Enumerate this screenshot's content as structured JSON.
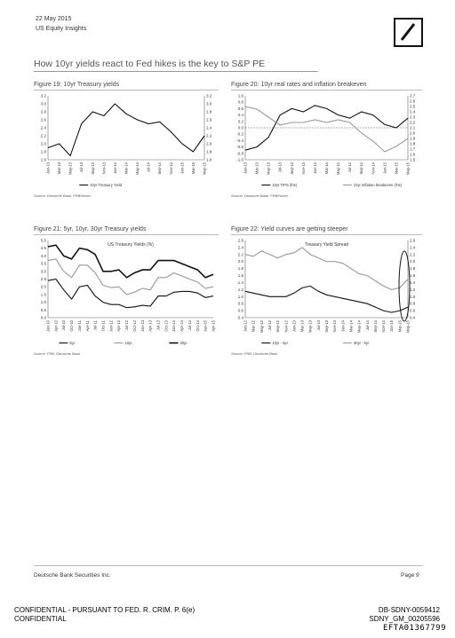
{
  "header": {
    "date": "22 May 2015",
    "subtitle": "US Equity Insights"
  },
  "page_title": "How 10yr yields react to Fed hikes is the key to S&P PE",
  "figures": [
    {
      "title": "Figure 19: 10yr Treasury yields",
      "source": "Source: Deutsche Bank, FRB/Haver"
    },
    {
      "title": "Figure 20: 10yr real rates and inflation breakeven",
      "source": "Source: Deutsche Bank, FRB/Haver"
    },
    {
      "title": "Figure 21: 5yr, 10yr, 30yr Treasury yields",
      "source": "Source: FRB, Deutsche Bank"
    },
    {
      "title": "Figure 22: Yield curves are getting steeper",
      "source": "Source: FRB, Deutsche Bank"
    }
  ],
  "footer": {
    "left": "Deutsche Bank Securities Inc.",
    "right": "Page 9",
    "confidential_1": "CONFIDENTIAL - PURSUANT TO FED. R. CRIM. P. 6(e)",
    "confidential_2": "CONFIDENTIAL",
    "bates_1": "DB-SDNY-0059412",
    "bates_2": "SDNY_GM_00205596",
    "efta": "EFTA01367799"
  },
  "chart_data": [
    {
      "type": "line",
      "inner_title": "",
      "ylim": [
        1.6,
        3.2
      ],
      "y_ticks_left": [
        "3.2",
        "3.0",
        "2.8",
        "2.6",
        "2.4",
        "2.2",
        "2.0",
        "1.8",
        "1.6"
      ],
      "y_ticks_right": [
        "3.2",
        "3.0",
        "2.8",
        "2.6",
        "2.4",
        "2.2",
        "2.0",
        "1.8",
        "1.6"
      ],
      "categories": [
        "Jan-13",
        "Mar-13",
        "May-13",
        "Jul-13",
        "Sep-13",
        "Nov-13",
        "Jan-14",
        "Mar-14",
        "May-14",
        "Jul-14",
        "Sep-14",
        "Nov-14",
        "Jan-15",
        "Mar-15",
        "May-15"
      ],
      "series": [
        {
          "name": "10yr Treasury Yield",
          "color": "#111111",
          "values": [
            1.9,
            2.0,
            1.7,
            2.5,
            2.8,
            2.7,
            3.0,
            2.75,
            2.6,
            2.5,
            2.55,
            2.3,
            2.0,
            1.8,
            2.2
          ]
        }
      ]
    },
    {
      "type": "line",
      "inner_title": "",
      "ylim": [
        -1.0,
        1.0
      ],
      "y_ticks_left": [
        "1.0",
        "0.8",
        "0.6",
        "0.4",
        "0.2",
        "0.0",
        "-0.2",
        "-0.4",
        "-0.6",
        "-0.8",
        "-1.0"
      ],
      "y2lim": [
        1.5,
        2.7
      ],
      "y_ticks_right": [
        "2.7",
        "2.6",
        "2.5",
        "2.4",
        "2.3",
        "2.2",
        "2.1",
        "2.0",
        "1.9",
        "1.8",
        "1.7",
        "1.6",
        "1.5"
      ],
      "categories": [
        "Jan-13",
        "Mar-13",
        "May-13",
        "Jul-13",
        "Sep-13",
        "Nov-13",
        "Jan-14",
        "Mar-14",
        "May-14",
        "Jul-14",
        "Sep-14",
        "Nov-14",
        "Jan-15",
        "Mar-15",
        "May-15"
      ],
      "series": [
        {
          "name": "10yr TIPS (lhs)",
          "color": "#111111",
          "values": [
            -0.7,
            -0.6,
            -0.3,
            0.4,
            0.6,
            0.5,
            0.7,
            0.6,
            0.4,
            0.3,
            0.5,
            0.4,
            0.1,
            0.0,
            0.3
          ]
        },
        {
          "name": "10yr inflation breakeven (rhs)",
          "color": "#999999",
          "axis": "right",
          "values": [
            2.5,
            2.45,
            2.3,
            2.15,
            2.2,
            2.2,
            2.25,
            2.2,
            2.25,
            2.2,
            2.0,
            1.85,
            1.65,
            1.75,
            1.9
          ]
        }
      ]
    },
    {
      "type": "line",
      "inner_title": "US Treasury Yields (%)",
      "ylim": [
        0.0,
        5.0
      ],
      "y_ticks_left": [
        "5.0",
        "4.5",
        "4.0",
        "3.5",
        "3.0",
        "2.5",
        "2.0",
        "1.5",
        "1.0",
        "0.5",
        "0.0"
      ],
      "categories": [
        "Jan-10",
        "Apr-10",
        "Jul-10",
        "Oct-10",
        "Jan-11",
        "Apr-11",
        "Jul-11",
        "Oct-11",
        "Jan-12",
        "Apr-12",
        "Jul-12",
        "Oct-12",
        "Jan-13",
        "Apr-13",
        "Jul-13",
        "Oct-13",
        "Jan-14",
        "Apr-14",
        "Jul-14",
        "Oct-14",
        "Jan-15",
        "Apr-15"
      ],
      "series": [
        {
          "name": "5yr",
          "color": "#111111",
          "values": [
            2.4,
            2.5,
            1.8,
            1.2,
            2.0,
            2.1,
            1.4,
            1.0,
            0.85,
            0.85,
            0.65,
            0.7,
            0.8,
            0.75,
            1.4,
            1.4,
            1.65,
            1.7,
            1.7,
            1.6,
            1.3,
            1.4
          ]
        },
        {
          "name": "10yr",
          "color": "#999999",
          "values": [
            3.7,
            3.8,
            3.0,
            2.6,
            3.4,
            3.4,
            2.9,
            2.1,
            1.95,
            2.0,
            1.5,
            1.65,
            1.9,
            1.8,
            2.6,
            2.6,
            2.9,
            2.7,
            2.5,
            2.3,
            1.9,
            2.0
          ]
        },
        {
          "name": "30yr",
          "color": "#111111",
          "bold": true,
          "values": [
            4.6,
            4.7,
            4.0,
            3.8,
            4.5,
            4.4,
            4.1,
            3.0,
            3.0,
            3.1,
            2.6,
            2.9,
            3.1,
            3.1,
            3.7,
            3.7,
            3.7,
            3.5,
            3.3,
            3.1,
            2.6,
            2.8
          ]
        }
      ]
    },
    {
      "type": "line",
      "inner_title": "Treasury Yield Spread",
      "ylim": [
        0.4,
        2.6
      ],
      "y_ticks_left": [
        "2.6",
        "2.4",
        "2.2",
        "2.0",
        "1.8",
        "1.6",
        "1.4",
        "1.2",
        "1.0",
        "0.8",
        "0.6",
        "0.4"
      ],
      "y_ticks_right": [
        "2.6",
        "2.4",
        "2.2",
        "2.0",
        "1.8",
        "1.6",
        "1.4",
        "1.2",
        "1.0",
        "0.8",
        "0.6",
        "0.4"
      ],
      "categories": [
        "Jan-12",
        "Mar-12",
        "May-12",
        "Jul-12",
        "Sep-12",
        "Nov-12",
        "Jan-13",
        "Mar-13",
        "May-13",
        "Jul-13",
        "Sep-13",
        "Nov-13",
        "Jan-14",
        "Mar-14",
        "May-14",
        "Jul-14",
        "Sep-14",
        "Nov-14",
        "Jan-15",
        "Mar-15",
        "May-15"
      ],
      "series": [
        {
          "name": "10yr - 5yr",
          "color": "#111111",
          "values": [
            1.15,
            1.1,
            1.05,
            1.0,
            1.0,
            1.0,
            1.1,
            1.25,
            1.3,
            1.15,
            1.05,
            1.0,
            0.95,
            0.9,
            0.85,
            0.8,
            0.7,
            0.6,
            0.55,
            0.6,
            0.7
          ]
        },
        {
          "name": "30yr - 5yr",
          "color": "#999999",
          "values": [
            2.2,
            2.15,
            2.3,
            2.2,
            2.1,
            2.2,
            2.25,
            2.4,
            2.2,
            2.1,
            2.0,
            2.0,
            1.95,
            1.8,
            1.65,
            1.6,
            1.45,
            1.3,
            1.2,
            1.25,
            1.5
          ]
        }
      ]
    }
  ]
}
